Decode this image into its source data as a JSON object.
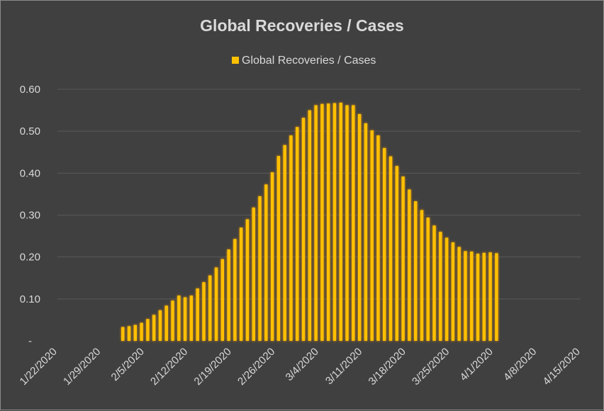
{
  "chart_data": {
    "type": "bar",
    "title": "Global Recoveries / Cases",
    "legend": {
      "position": "top",
      "entries": [
        "Global Recoveries / Cases"
      ]
    },
    "xlabel": "",
    "ylabel": "",
    "ylim": [
      0,
      0.6
    ],
    "yticks": [
      0,
      0.1,
      0.2,
      0.3,
      0.4,
      0.5,
      0.6
    ],
    "ytick_labels": [
      "-",
      "0.10",
      "0.20",
      "0.30",
      "0.40",
      "0.50",
      "0.60"
    ],
    "grid": true,
    "xlim_dates": [
      "2020-01-22",
      "2020-04-15"
    ],
    "xtick_labels": [
      "1/22/2020",
      "1/29/2020",
      "2/5/2020",
      "2/12/2020",
      "2/19/2020",
      "2/26/2020",
      "3/4/2020",
      "3/11/2020",
      "3/18/2020",
      "3/25/2020",
      "4/1/2020",
      "4/8/2020",
      "4/15/2020"
    ],
    "start_date": "2020-02-01",
    "values": [
      0.033,
      0.035,
      0.038,
      0.043,
      0.052,
      0.062,
      0.073,
      0.084,
      0.096,
      0.108,
      0.104,
      0.108,
      0.125,
      0.14,
      0.156,
      0.175,
      0.195,
      0.218,
      0.243,
      0.27,
      0.29,
      0.318,
      0.345,
      0.373,
      0.402,
      0.441,
      0.467,
      0.49,
      0.51,
      0.532,
      0.55,
      0.562,
      0.565,
      0.566,
      0.567,
      0.568,
      0.562,
      0.562,
      0.541,
      0.519,
      0.502,
      0.49,
      0.46,
      0.44,
      0.417,
      0.392,
      0.361,
      0.333,
      0.312,
      0.294,
      0.275,
      0.26,
      0.246,
      0.235,
      0.224,
      0.214,
      0.213,
      0.208,
      0.21,
      0.211,
      0.209
    ],
    "colors": {
      "bar": "#ffc000",
      "glow": "#ffa500"
    }
  }
}
